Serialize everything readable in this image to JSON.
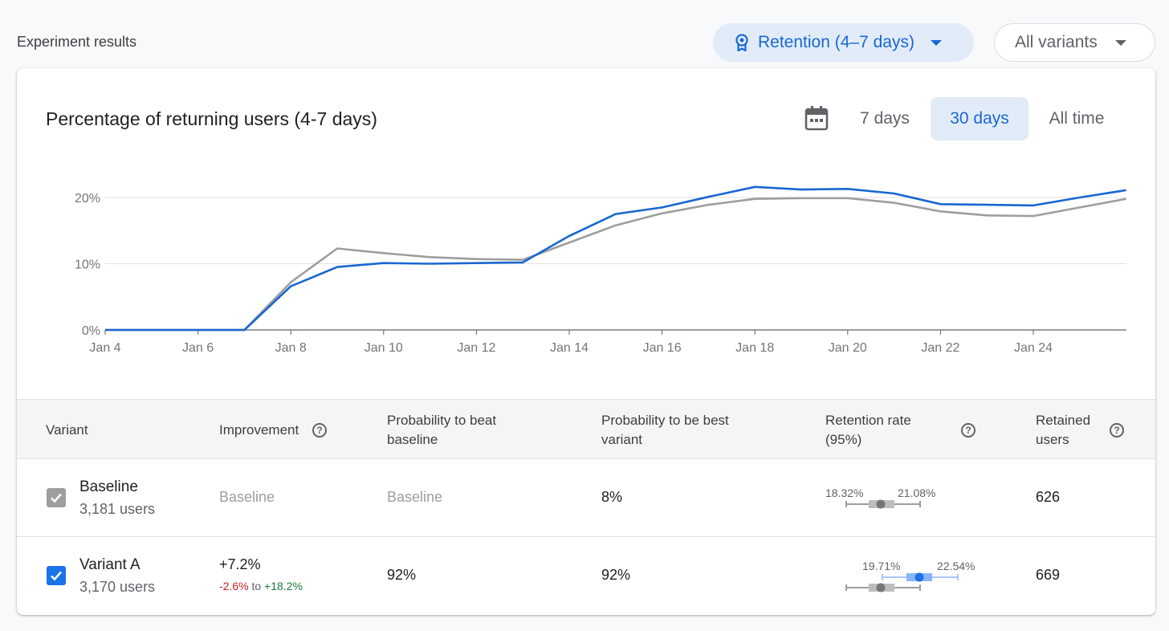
{
  "header": {
    "title": "Experiment results",
    "metric_selector": "Retention (4–7 days)",
    "variant_selector": "All variants"
  },
  "chart_card": {
    "title": "Percentage of returning users (4-7 days)",
    "ranges": [
      "7 days",
      "30 days",
      "All time"
    ],
    "selected_range": "30 days"
  },
  "chart_data": {
    "type": "line",
    "title": "Percentage of returning users (4-7 days)",
    "x": [
      "Jan 4",
      "Jan 5",
      "Jan 6",
      "Jan 7",
      "Jan 8",
      "Jan 9",
      "Jan 10",
      "Jan 11",
      "Jan 12",
      "Jan 13",
      "Jan 14",
      "Jan 15",
      "Jan 16",
      "Jan 17",
      "Jan 18",
      "Jan 19",
      "Jan 20",
      "Jan 21",
      "Jan 22",
      "Jan 23",
      "Jan 24",
      "Jan 25",
      "Jan 26"
    ],
    "x_ticks": [
      "Jan 4",
      "Jan 6",
      "Jan 8",
      "Jan 10",
      "Jan 12",
      "Jan 14",
      "Jan 16",
      "Jan 18",
      "Jan 20",
      "Jan 22",
      "Jan 24"
    ],
    "y_ticks": [
      "0%",
      "10%",
      "20%"
    ],
    "ylim": [
      0,
      20
    ],
    "series": [
      {
        "name": "Baseline",
        "color": "#9e9e9e",
        "values": [
          0,
          0,
          0,
          0,
          7.2,
          12.3,
          11.6,
          11.0,
          10.7,
          10.6,
          13.2,
          15.8,
          17.6,
          18.9,
          19.8,
          19.9,
          19.9,
          19.2,
          17.9,
          17.3,
          17.2,
          18.5,
          19.8
        ]
      },
      {
        "name": "Variant A",
        "color": "#1967d2",
        "values": [
          0,
          0,
          0,
          0,
          6.6,
          9.5,
          10.1,
          10.0,
          10.1,
          10.2,
          14.2,
          17.5,
          18.5,
          20.1,
          21.6,
          21.2,
          21.3,
          20.6,
          19.0,
          18.9,
          18.8,
          20.0,
          21.1
        ]
      }
    ]
  },
  "table": {
    "headers": {
      "variant": "Variant",
      "improvement": "Improvement",
      "prob_beat_1": "Probability to beat",
      "prob_beat_2": "baseline",
      "prob_best_1": "Probability to be best",
      "prob_best_2": "variant",
      "retention_1": "Retention rate",
      "retention_2": "(95%)",
      "retained_1": "Retained",
      "retained_2": "users"
    },
    "help_glyph": "?",
    "rows": [
      {
        "name": "Baseline",
        "users": "3,181 users",
        "improvement": "Baseline",
        "prob_beat": "Baseline",
        "prob_best": "8%",
        "ci_low": "18.32%",
        "ci_high": "21.08%",
        "retained": "626"
      },
      {
        "name": "Variant A",
        "users": "3,170 users",
        "improvement": "+7.2%",
        "improvement_low": "-2.6%",
        "improvement_to": "to",
        "improvement_high": "+18.2%",
        "prob_beat": "92%",
        "prob_best": "92%",
        "ci_low": "19.71%",
        "ci_high": "22.54%",
        "retained": "669"
      }
    ]
  }
}
